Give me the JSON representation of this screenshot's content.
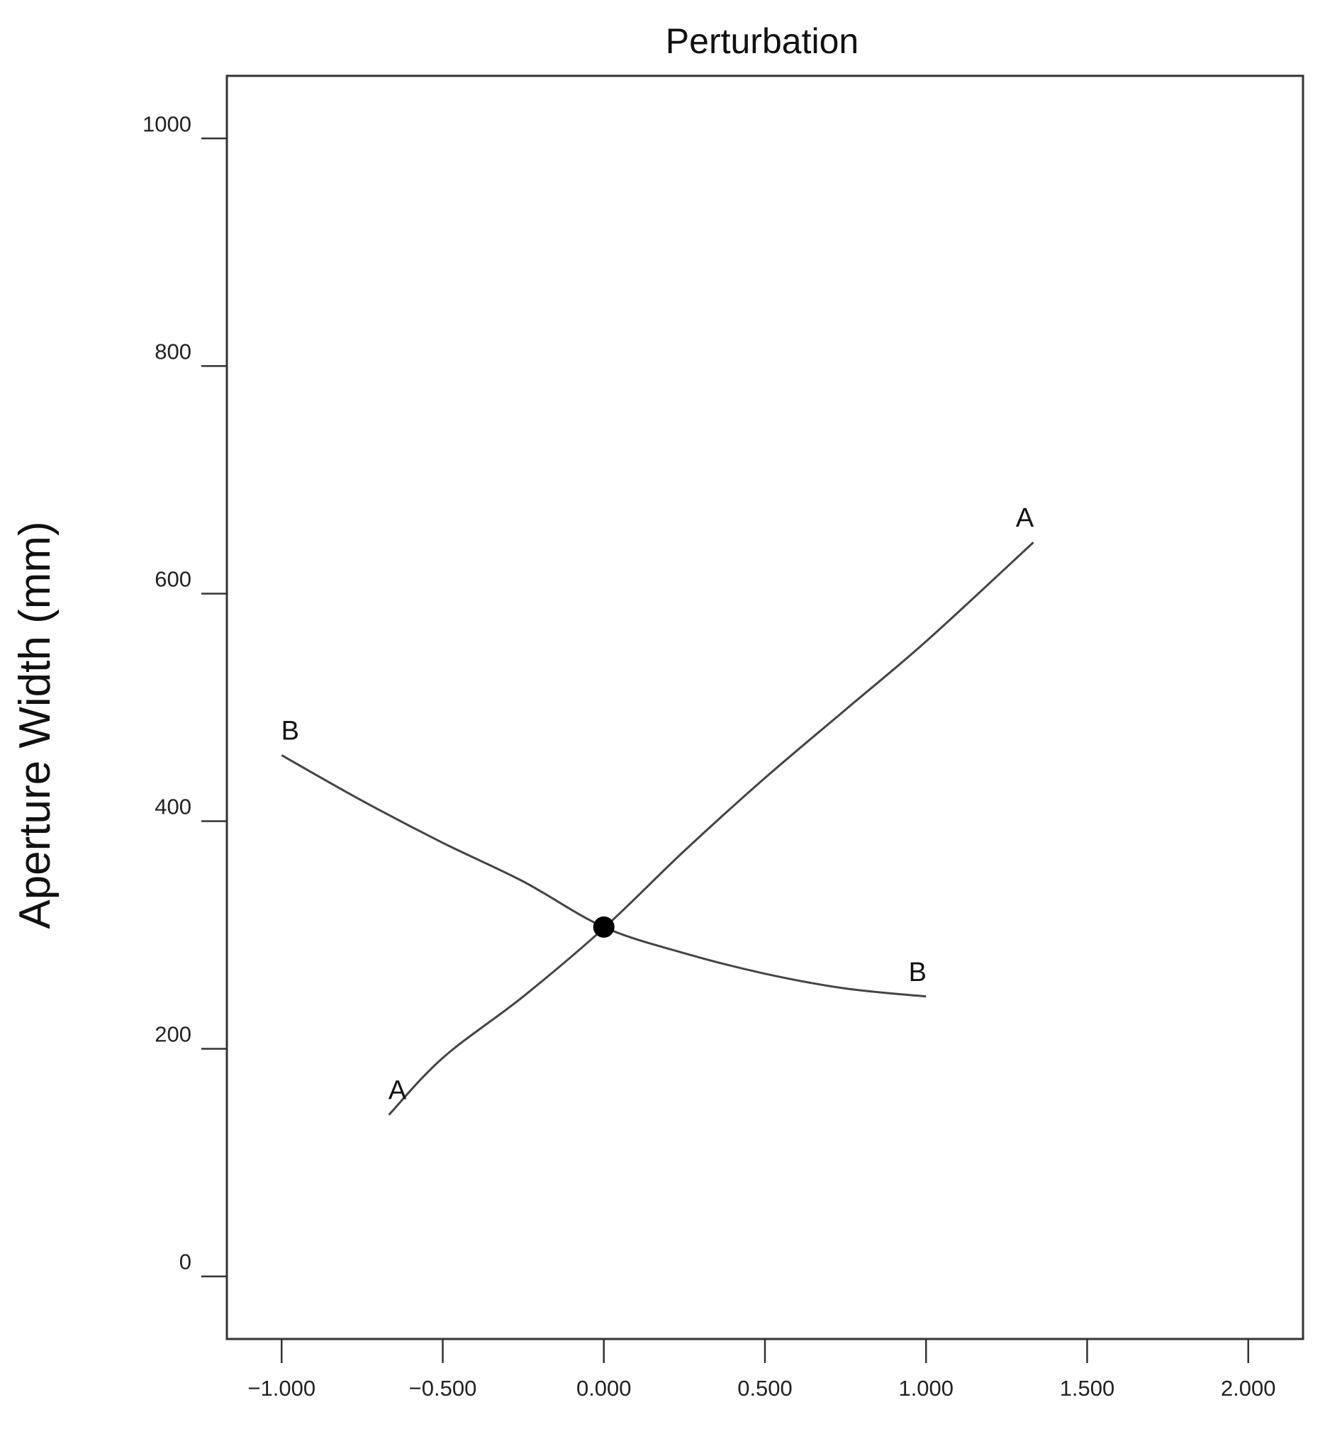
{
  "chart_data": {
    "type": "line",
    "title": "Perturbation",
    "ylabel": "Aperture Width (mm)",
    "xlabel": "",
    "xlim": [
      -1.17,
      2.17
    ],
    "ylim": [
      -55,
      1055
    ],
    "x_ticks": [
      -1.0,
      -0.5,
      0.0,
      0.5,
      1.0,
      1.5,
      2.0
    ],
    "x_tick_labels": [
      "−1.000",
      "−0.500",
      "0.000",
      "0.500",
      "1.000",
      "1.500",
      "2.000"
    ],
    "y_ticks": [
      0,
      200,
      400,
      600,
      800,
      1000
    ],
    "y_tick_labels": [
      "0",
      "200",
      "400",
      "600",
      "800",
      "1000"
    ],
    "grid": false,
    "series": [
      {
        "name": "A",
        "x": [
          -0.667,
          -0.5,
          -0.25,
          0.0,
          0.25,
          0.5,
          0.75,
          1.0,
          1.333
        ],
        "y": [
          142,
          192,
          246,
          306,
          374,
          438,
          498,
          558,
          645
        ]
      },
      {
        "name": "B",
        "x": [
          -1.0,
          -0.75,
          -0.5,
          -0.25,
          0.0,
          0.25,
          0.5,
          0.75,
          1.0
        ],
        "y": [
          458,
          418,
          381,
          347,
          307,
          284,
          266,
          253,
          246
        ]
      }
    ],
    "reference_point": {
      "x": 0.0,
      "y": 307
    }
  }
}
